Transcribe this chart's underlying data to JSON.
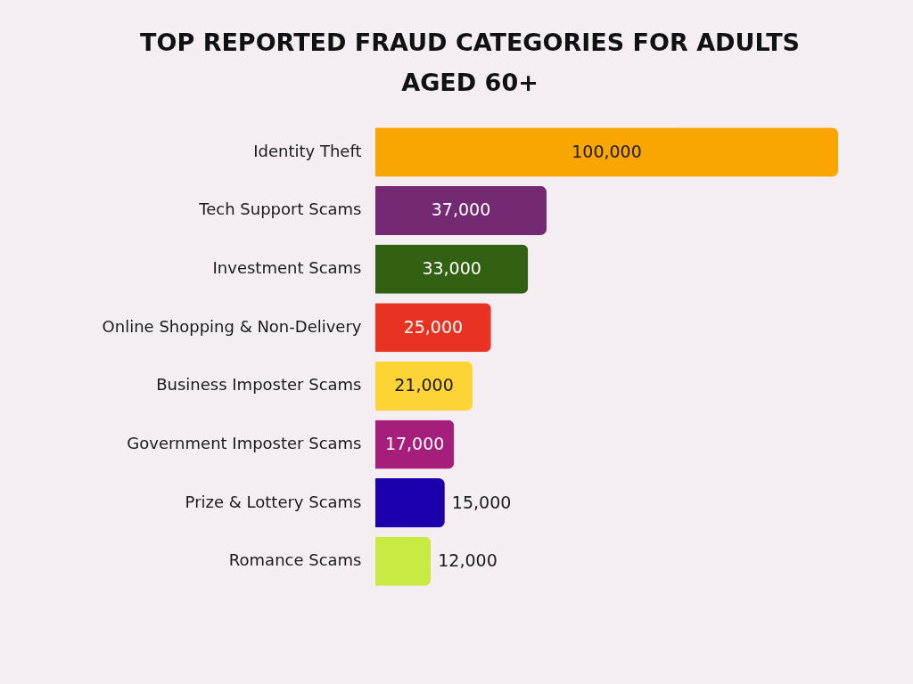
{
  "chart_data": {
    "type": "bar",
    "orientation": "horizontal",
    "title": "TOP REPORTED FRAUD CATEGORIES FOR ADULTS AGED 60+",
    "categories": [
      "Identity Theft",
      "Tech Support Scams",
      "Investment Scams",
      "Online Shopping & Non-Delivery",
      "Business Imposter Scams",
      "Government Imposter Scams",
      "Prize & Lottery Scams",
      "Romance Scams"
    ],
    "values": [
      100000,
      37000,
      33000,
      25000,
      21000,
      17000,
      15000,
      12000
    ],
    "value_labels": [
      "100,000",
      "37,000",
      "33,000",
      "25,000",
      "21,000",
      "17,000",
      "15,000",
      "12,000"
    ],
    "colors": [
      "#f9a602",
      "#732a72",
      "#336114",
      "#e83222",
      "#fdd436",
      "#a61e7c",
      "#1c00ae",
      "#c9ea43"
    ],
    "tick_labels": "y"
  }
}
